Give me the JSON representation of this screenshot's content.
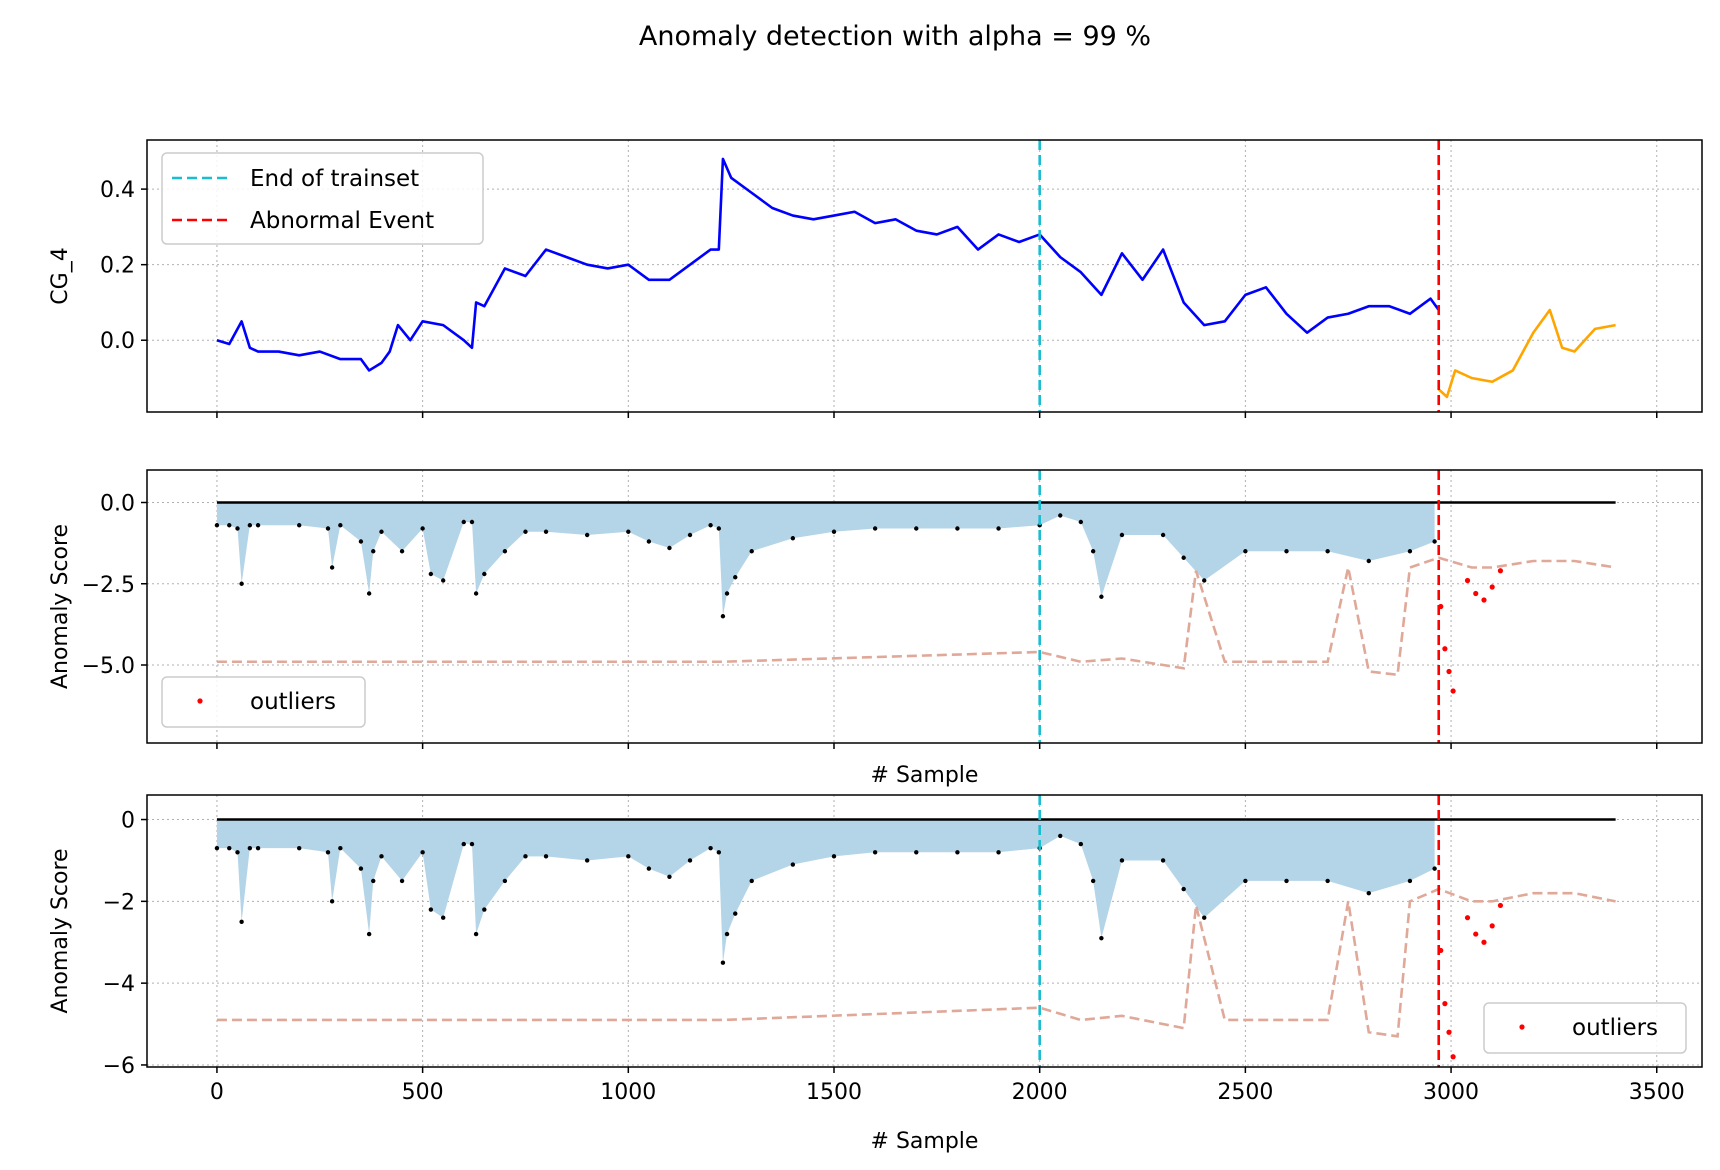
{
  "figure": {
    "title": "Anomaly detection with alpha = 99 %"
  },
  "colors": {
    "signal_train": "#0000ff",
    "signal_abnormal": "#ffa500",
    "end_of_trainset": "#17becf",
    "abnormal_event": "#ff0000",
    "score_fill": "#b4d4e8",
    "threshold": "#e0a898",
    "score_points": "#000000",
    "outliers": "#ff0000"
  },
  "chart_data": [
    {
      "id": "signal",
      "type": "line",
      "ylabel": "CG_4",
      "xlabel": "",
      "xlim": [
        -170,
        3610
      ],
      "ylim": [
        -0.19,
        0.53
      ],
      "yticks": [
        0.0,
        0.2,
        0.4
      ],
      "ytick_labels": [
        "0.0",
        "0.2",
        "0.4"
      ],
      "xticks": [
        0,
        500,
        1000,
        1500,
        2000,
        2500,
        3000,
        3500
      ],
      "show_xtick_labels": false,
      "grid": true,
      "vlines": [
        {
          "name": "End of trainset",
          "x": 2000
        },
        {
          "name": "Abnormal Event",
          "x": 2970
        }
      ],
      "legend": {
        "placement": "upper-left",
        "entries": [
          "End of trainset",
          "Abnormal Event"
        ]
      },
      "series": [
        {
          "name": "train",
          "x": [
            0,
            30,
            60,
            80,
            100,
            150,
            200,
            250,
            300,
            350,
            370,
            400,
            420,
            440,
            470,
            500,
            550,
            600,
            620,
            630,
            650,
            700,
            750,
            800,
            850,
            900,
            950,
            1000,
            1050,
            1100,
            1150,
            1200,
            1220,
            1230,
            1250,
            1300,
            1350,
            1400,
            1450,
            1500,
            1550,
            1600,
            1650,
            1700,
            1750,
            1800,
            1850,
            1900,
            1950,
            2000,
            2050,
            2100,
            2150,
            2200,
            2250,
            2300,
            2350,
            2400,
            2450,
            2500,
            2550,
            2600,
            2650,
            2700,
            2750,
            2800,
            2850,
            2900,
            2950,
            2970
          ],
          "y": [
            0.0,
            -0.01,
            0.05,
            -0.02,
            -0.03,
            -0.03,
            -0.04,
            -0.03,
            -0.05,
            -0.05,
            -0.08,
            -0.06,
            -0.03,
            0.04,
            0.0,
            0.05,
            0.04,
            0.0,
            -0.02,
            0.1,
            0.09,
            0.19,
            0.17,
            0.24,
            0.22,
            0.2,
            0.19,
            0.2,
            0.16,
            0.16,
            0.2,
            0.24,
            0.24,
            0.48,
            0.43,
            0.39,
            0.35,
            0.33,
            0.32,
            0.33,
            0.34,
            0.31,
            0.32,
            0.29,
            0.28,
            0.3,
            0.24,
            0.28,
            0.26,
            0.28,
            0.22,
            0.18,
            0.12,
            0.23,
            0.16,
            0.24,
            0.1,
            0.04,
            0.05,
            0.12,
            0.14,
            0.07,
            0.02,
            0.06,
            0.07,
            0.09,
            0.09,
            0.07,
            0.11,
            0.08
          ]
        },
        {
          "name": "abnormal",
          "x": [
            2970,
            2990,
            3010,
            3050,
            3100,
            3150,
            3200,
            3240,
            3270,
            3300,
            3350,
            3400
          ],
          "y": [
            -0.13,
            -0.15,
            -0.08,
            -0.1,
            -0.11,
            -0.08,
            0.02,
            0.08,
            -0.02,
            -0.03,
            0.03,
            0.04
          ]
        }
      ]
    },
    {
      "id": "score_mid",
      "type": "scatter",
      "ylabel": "Anomaly Score",
      "xlabel": "# Sample",
      "xlim": [
        -170,
        3610
      ],
      "ylim": [
        -7.4,
        1.0
      ],
      "yticks": [
        0.0,
        -2.5,
        -5.0
      ],
      "ytick_labels": [
        "0.0",
        "−2.5",
        "−5.0"
      ],
      "xticks": [
        0,
        500,
        1000,
        1500,
        2000,
        2500,
        3000,
        3500
      ],
      "show_xtick_labels": false,
      "grid": true,
      "vlines": [
        {
          "name": "End of trainset",
          "x": 2000
        },
        {
          "name": "Abnormal Event",
          "x": 2970
        }
      ],
      "legend": {
        "placement": "lower-left",
        "entries": [
          "outliers"
        ]
      },
      "baseline": 0,
      "score": {
        "x": [
          0,
          30,
          50,
          60,
          80,
          100,
          200,
          270,
          280,
          300,
          350,
          370,
          380,
          400,
          450,
          500,
          520,
          550,
          600,
          620,
          630,
          650,
          700,
          750,
          800,
          900,
          1000,
          1050,
          1100,
          1150,
          1200,
          1220,
          1230,
          1240,
          1260,
          1300,
          1400,
          1500,
          1600,
          1700,
          1800,
          1900,
          2000,
          2050,
          2100,
          2130,
          2150,
          2200,
          2300,
          2350,
          2400,
          2500,
          2600,
          2700,
          2800,
          2900,
          2960
        ],
        "y": [
          -0.7,
          -0.7,
          -0.8,
          -2.5,
          -0.7,
          -0.7,
          -0.7,
          -0.8,
          -2.0,
          -0.7,
          -1.2,
          -2.8,
          -1.5,
          -0.9,
          -1.5,
          -0.8,
          -2.2,
          -2.4,
          -0.6,
          -0.6,
          -2.8,
          -2.2,
          -1.5,
          -0.9,
          -0.9,
          -1.0,
          -0.9,
          -1.2,
          -1.4,
          -1.0,
          -0.7,
          -0.8,
          -3.5,
          -2.8,
          -2.3,
          -1.5,
          -1.1,
          -0.9,
          -0.8,
          -0.8,
          -0.8,
          -0.8,
          -0.7,
          -0.4,
          -0.6,
          -1.5,
          -2.9,
          -1.0,
          -1.0,
          -1.7,
          -2.4,
          -1.5,
          -1.5,
          -1.5,
          -1.8,
          -1.5,
          -1.2
        ]
      },
      "threshold": {
        "x": [
          0,
          1230,
          2000,
          2100,
          2200,
          2350,
          2380,
          2450,
          2600,
          2700,
          2750,
          2800,
          2870,
          2900,
          2970,
          3050,
          3100,
          3200,
          3300,
          3400
        ],
        "y": [
          -4.9,
          -4.9,
          -4.6,
          -4.9,
          -4.8,
          -5.1,
          -2.1,
          -4.9,
          -4.9,
          -4.9,
          -2.0,
          -5.2,
          -5.3,
          -2.0,
          -1.7,
          -2.0,
          -2.0,
          -1.8,
          -1.8,
          -2.0
        ]
      },
      "outliers": {
        "x": [
          2975,
          2985,
          2995,
          3005,
          3040,
          3060,
          3080,
          3100,
          3120
        ],
        "y": [
          -3.2,
          -4.5,
          -5.2,
          -5.8,
          -2.4,
          -2.8,
          -3.0,
          -2.6,
          -2.1
        ]
      }
    },
    {
      "id": "score_bottom",
      "type": "scatter",
      "ylabel": "Anomaly Score",
      "xlabel": "# Sample",
      "xlim": [
        -170,
        3610
      ],
      "ylim": [
        -6.05,
        0.6
      ],
      "yticks": [
        0,
        -2,
        -4,
        -6
      ],
      "ytick_labels": [
        "0",
        "−2",
        "−4",
        "−6"
      ],
      "xticks": [
        0,
        500,
        1000,
        1500,
        2000,
        2500,
        3000,
        3500
      ],
      "xtick_labels": [
        "0",
        "500",
        "1000",
        "1500",
        "2000",
        "2500",
        "3000",
        "3500"
      ],
      "show_xtick_labels": true,
      "grid": true,
      "vlines": [
        {
          "name": "End of trainset",
          "x": 2000
        },
        {
          "name": "Abnormal Event",
          "x": 2970
        }
      ],
      "legend": {
        "placement": "lower-right",
        "entries": [
          "outliers"
        ]
      },
      "baseline": 0,
      "score": {
        "x": [
          0,
          30,
          50,
          60,
          80,
          100,
          200,
          270,
          280,
          300,
          350,
          370,
          380,
          400,
          450,
          500,
          520,
          550,
          600,
          620,
          630,
          650,
          700,
          750,
          800,
          900,
          1000,
          1050,
          1100,
          1150,
          1200,
          1220,
          1230,
          1240,
          1260,
          1300,
          1400,
          1500,
          1600,
          1700,
          1800,
          1900,
          2000,
          2050,
          2100,
          2130,
          2150,
          2200,
          2300,
          2350,
          2400,
          2500,
          2600,
          2700,
          2800,
          2900,
          2960
        ],
        "y": [
          -0.7,
          -0.7,
          -0.8,
          -2.5,
          -0.7,
          -0.7,
          -0.7,
          -0.8,
          -2.0,
          -0.7,
          -1.2,
          -2.8,
          -1.5,
          -0.9,
          -1.5,
          -0.8,
          -2.2,
          -2.4,
          -0.6,
          -0.6,
          -2.8,
          -2.2,
          -1.5,
          -0.9,
          -0.9,
          -1.0,
          -0.9,
          -1.2,
          -1.4,
          -1.0,
          -0.7,
          -0.8,
          -3.5,
          -2.8,
          -2.3,
          -1.5,
          -1.1,
          -0.9,
          -0.8,
          -0.8,
          -0.8,
          -0.8,
          -0.7,
          -0.4,
          -0.6,
          -1.5,
          -2.9,
          -1.0,
          -1.0,
          -1.7,
          -2.4,
          -1.5,
          -1.5,
          -1.5,
          -1.8,
          -1.5,
          -1.2
        ]
      },
      "threshold": {
        "x": [
          0,
          1230,
          2000,
          2100,
          2200,
          2350,
          2380,
          2450,
          2600,
          2700,
          2750,
          2800,
          2870,
          2900,
          2970,
          3050,
          3100,
          3200,
          3300,
          3400
        ],
        "y": [
          -4.9,
          -4.9,
          -4.6,
          -4.9,
          -4.8,
          -5.1,
          -2.1,
          -4.9,
          -4.9,
          -4.9,
          -2.0,
          -5.2,
          -5.3,
          -2.0,
          -1.7,
          -2.0,
          -2.0,
          -1.8,
          -1.8,
          -2.0
        ]
      },
      "outliers": {
        "x": [
          2975,
          2985,
          2995,
          3005,
          3040,
          3060,
          3080,
          3100,
          3120
        ],
        "y": [
          -3.2,
          -4.5,
          -5.2,
          -5.8,
          -2.4,
          -2.8,
          -3.0,
          -2.6,
          -2.1
        ]
      }
    }
  ]
}
